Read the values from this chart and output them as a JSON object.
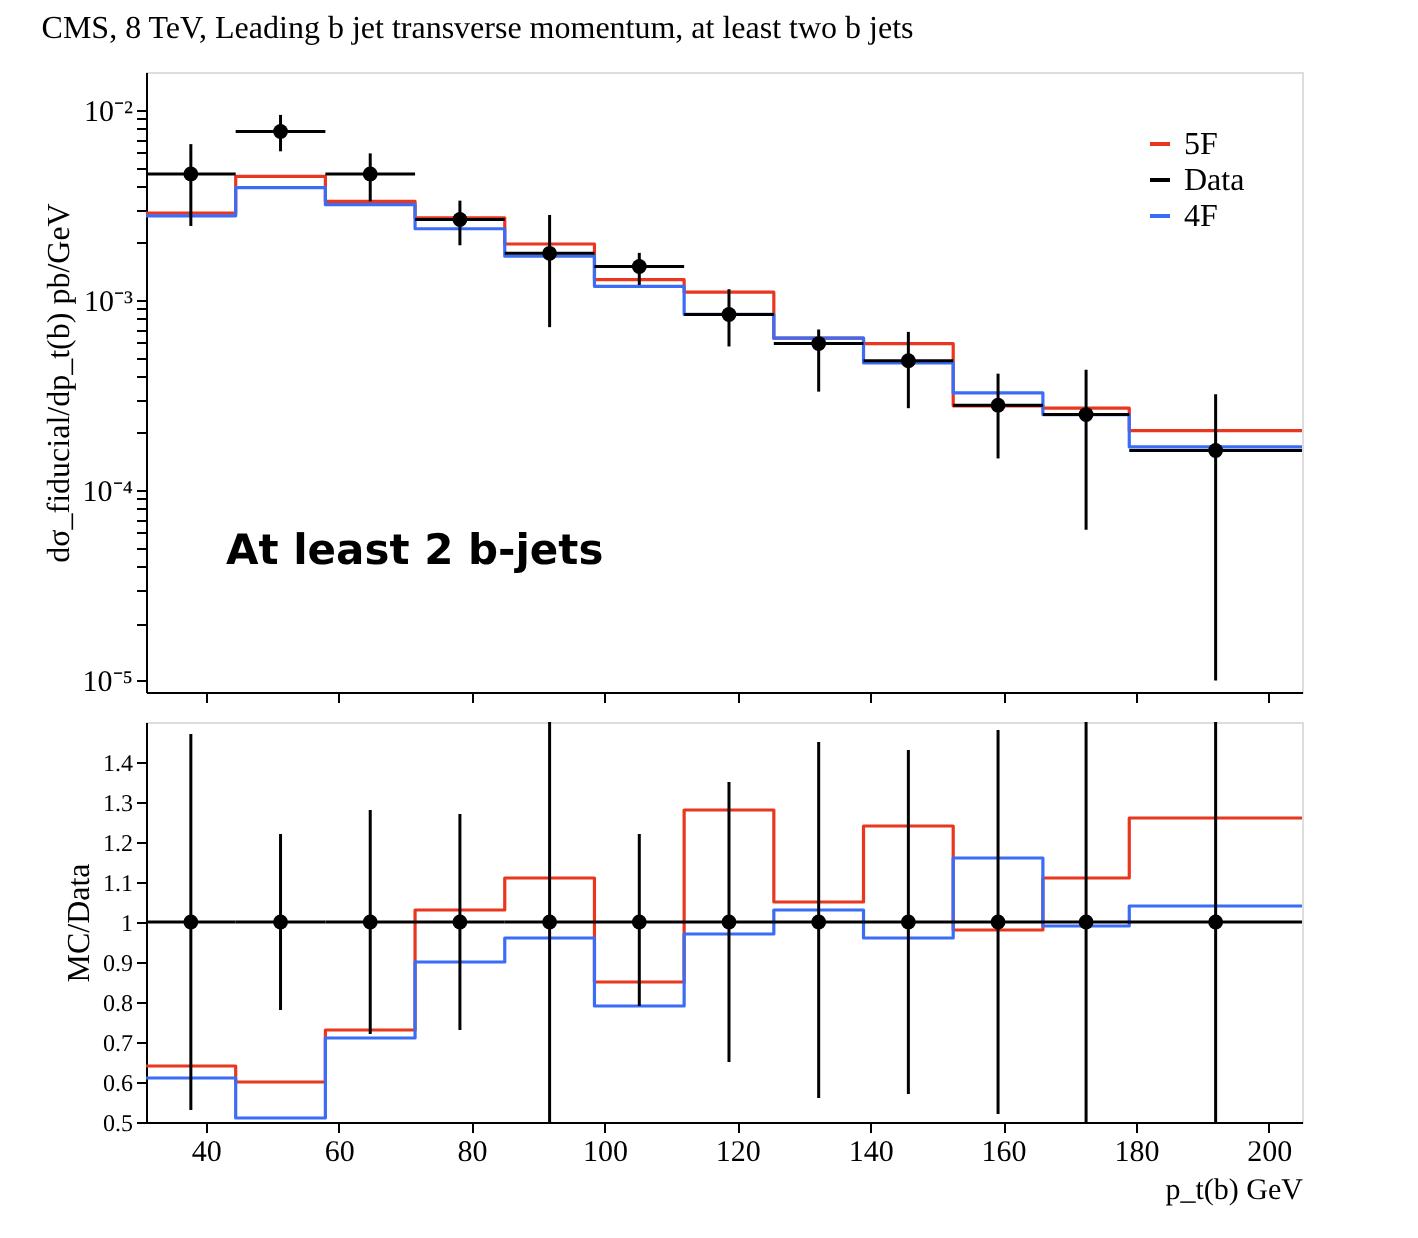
{
  "chart_data": [
    {
      "type": "scatter",
      "title": "CMS, 8 TeV, Leading b jet transverse momentum, at least two b jets",
      "ylabel": "dσ_fiducial/dp_t(b) pb/GeV",
      "log": true,
      "legend": "top right",
      "grid": false,
      "tick_labels": "y",
      "marker": "circle",
      "xlim": [
        31,
        205
      ],
      "xticks": [
        {
          "value": 40,
          "label": null
        },
        {
          "value": 60,
          "label": null
        },
        {
          "value": 80,
          "label": null
        },
        {
          "value": 100,
          "label": null
        },
        {
          "value": 120,
          "label": null
        },
        {
          "value": 140,
          "label": null
        },
        {
          "value": 160,
          "label": null
        },
        {
          "value": 180,
          "label": null
        },
        {
          "value": 200,
          "label": null
        }
      ],
      "ylim": [
        8.7e-06,
        0.0158
      ],
      "yticks": [
        {
          "value": 1e-05,
          "label": "10⁻⁵"
        },
        {
          "value": 2e-05,
          "label": null
        },
        {
          "value": 3e-05,
          "label": null
        },
        {
          "value": 4e-05,
          "label": null
        },
        {
          "value": 5e-05,
          "label": null
        },
        {
          "value": 6e-05,
          "label": null
        },
        {
          "value": 7e-05,
          "label": null
        },
        {
          "value": 8e-05,
          "label": null
        },
        {
          "value": 9e-05,
          "label": null
        },
        {
          "value": 0.0001,
          "label": "10⁻⁴"
        },
        {
          "value": 0.0002,
          "label": null
        },
        {
          "value": 0.0003,
          "label": null
        },
        {
          "value": 0.0004,
          "label": null
        },
        {
          "value": 0.0005,
          "label": null
        },
        {
          "value": 0.0006,
          "label": null
        },
        {
          "value": 0.0007,
          "label": null
        },
        {
          "value": 0.0008,
          "label": null
        },
        {
          "value": 0.0009,
          "label": null
        },
        {
          "value": 0.001,
          "label": "10⁻³"
        },
        {
          "value": 0.002,
          "label": null
        },
        {
          "value": 0.003,
          "label": null
        },
        {
          "value": 0.004,
          "label": null
        },
        {
          "value": 0.005,
          "label": null
        },
        {
          "value": 0.006,
          "label": null
        },
        {
          "value": 0.007,
          "label": null
        },
        {
          "value": 0.008,
          "label": null
        },
        {
          "value": 0.009,
          "label": null
        },
        {
          "value": 0.01,
          "label": "10⁻²"
        }
      ],
      "annotations": [
        "At least 2 b-jets"
      ],
      "x": [
        37.75,
        51.25,
        64.75,
        78.25,
        91.75,
        105.25,
        118.75,
        132.25,
        145.75,
        159.25,
        172.5,
        192
      ],
      "series": [
        {
          "name": "5F",
          "type": "histogram",
          "color": "#e8371e",
          "bins": [
            31,
            44.5,
            58,
            71.5,
            85,
            98.5,
            112,
            125.5,
            139,
            152.5,
            166,
            179,
            205
          ],
          "values": [
            0.00286,
            0.00447,
            0.0033,
            0.0027,
            0.00197,
            0.00128,
            0.0011,
            0.00063,
            0.00059,
            0.000278,
            0.00027,
            0.000206
          ]
        },
        {
          "name": "Data",
          "color": "#000000",
          "values": [
            0.0046,
            0.0077,
            0.0046,
            0.00265,
            0.00176,
            0.0015,
            0.00084,
            0.00059,
            0.00048,
            0.00028,
            0.00025,
            0.000162
          ],
          "errors": [
            [
              0.00245,
              0.0066
            ],
            [
              0.00605,
              0.0094
            ],
            [
              0.0033,
              0.0059
            ],
            [
              0.00194,
              0.00333
            ],
            [
              0.00072,
              0.0028
            ],
            [
              0.0012,
              0.00177
            ],
            [
              0.00057,
              0.00114
            ],
            [
              0.00033,
              0.0007
            ],
            [
              0.00027,
              0.00068
            ],
            [
              0.000147,
              0.00041
            ],
            [
              6.2e-05,
              0.00043
            ],
            [
              1e-05,
              0.00032
            ]
          ],
          "xerrors": [
            6.75,
            6.75,
            6.75,
            6.75,
            6.75,
            6.75,
            6.75,
            6.75,
            6.75,
            6.75,
            6.5,
            13
          ]
        },
        {
          "name": "4F",
          "type": "histogram",
          "color": "#3b6cf5",
          "bins": [
            31,
            44.5,
            58,
            71.5,
            85,
            98.5,
            112,
            125.5,
            139,
            152.5,
            166,
            179,
            205
          ],
          "values": [
            0.00277,
            0.0039,
            0.00317,
            0.00237,
            0.0017,
            0.00118,
            0.00084,
            0.00063,
            0.000467,
            0.000325,
            0.00025,
            0.000169
          ]
        }
      ]
    },
    {
      "type": "scatter",
      "ylabel": "MC/Data",
      "xlabel": "p_t(b) GeV",
      "grid": false,
      "marker": "circle",
      "xlim": [
        31,
        205
      ],
      "xticks": [
        40,
        60,
        80,
        100,
        120,
        140,
        160,
        180,
        200
      ],
      "ylim": [
        0.5,
        1.5
      ],
      "yticks": [
        0.5,
        0.6,
        0.7,
        0.8,
        0.9,
        1,
        1.1,
        1.2,
        1.3,
        1.4
      ],
      "x": [
        37.75,
        51.25,
        64.75,
        78.25,
        91.75,
        105.25,
        118.75,
        132.25,
        145.75,
        159.25,
        172.5,
        192
      ],
      "series": [
        {
          "type": "histogram",
          "color": "#e8371e",
          "bins": [
            31,
            44.5,
            58,
            71.5,
            85,
            98.5,
            112,
            125.5,
            139,
            152.5,
            166,
            179,
            205
          ],
          "values": [
            0.64,
            0.6,
            0.73,
            1.03,
            1.11,
            0.85,
            1.28,
            1.05,
            1.24,
            0.98,
            1.11,
            1.26
          ]
        },
        {
          "type": "histogram",
          "color": "#3b6cf5",
          "bins": [
            31,
            44.5,
            58,
            71.5,
            85,
            98.5,
            112,
            125.5,
            139,
            152.5,
            166,
            179,
            205
          ],
          "values": [
            0.61,
            0.51,
            0.71,
            0.9,
            0.96,
            0.79,
            0.97,
            1.03,
            0.96,
            1.16,
            0.99,
            1.04
          ]
        },
        {
          "color": "#000000",
          "values": [
            1,
            1,
            1,
            1,
            1,
            1,
            1,
            1,
            1,
            1,
            1,
            1
          ],
          "errors": [
            [
              0.53,
              1.47
            ],
            [
              0.78,
              1.22
            ],
            [
              0.72,
              1.28
            ],
            [
              0.73,
              1.27
            ],
            [
              0.5,
              1.5
            ],
            [
              0.79,
              1.22
            ],
            [
              0.65,
              1.35
            ],
            [
              0.56,
              1.45
            ],
            [
              0.57,
              1.43
            ],
            [
              0.52,
              1.48
            ],
            [
              0.5,
              1.5
            ],
            [
              0.5,
              1.5
            ]
          ],
          "xerrors": [
            6.75,
            6.75,
            6.75,
            6.75,
            6.75,
            6.75,
            6.75,
            6.75,
            6.75,
            6.75,
            6.5,
            13
          ]
        }
      ]
    }
  ]
}
